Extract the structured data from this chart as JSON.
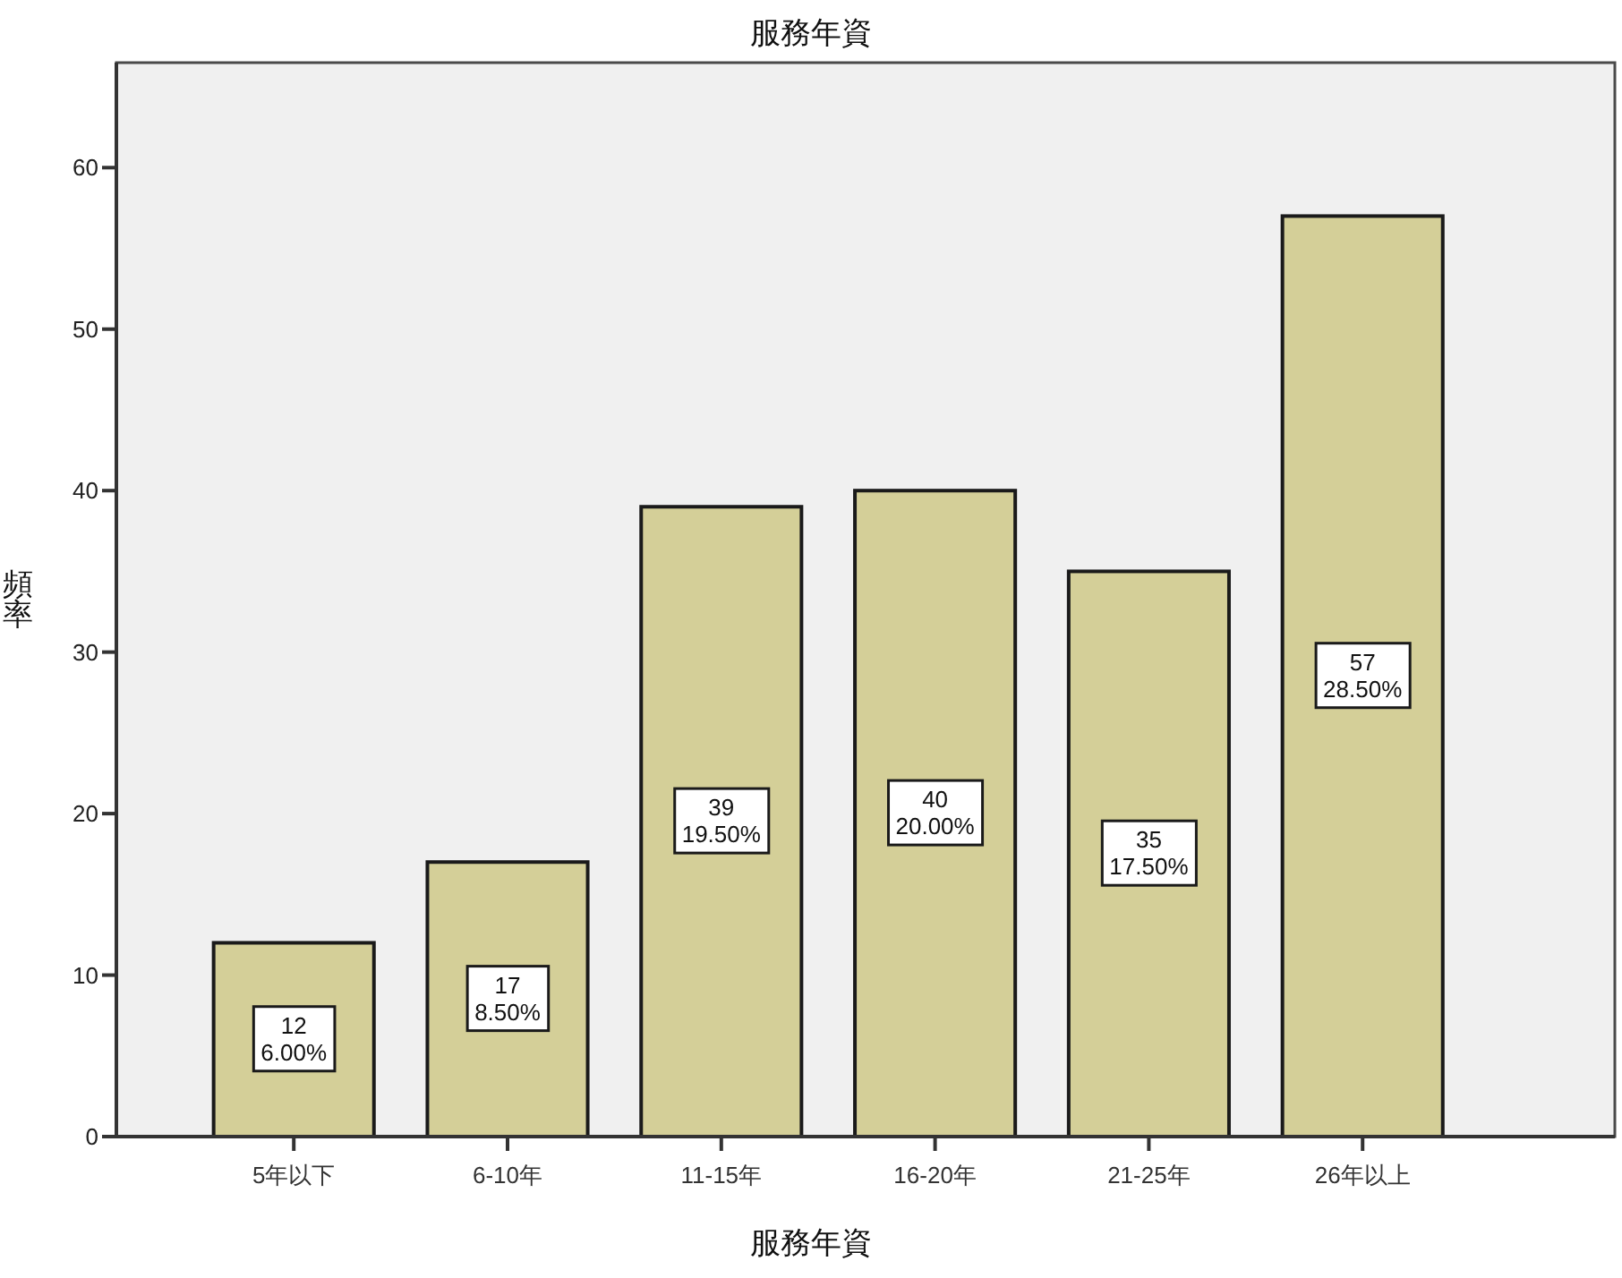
{
  "chart_data": {
    "type": "bar",
    "title": "服務年資",
    "xlabel": "服務年資",
    "ylabel": "頻率",
    "categories": [
      "5年以下",
      "6-10年",
      "11-15年",
      "16-20年",
      "21-25年",
      "26年以上"
    ],
    "values": [
      12,
      17,
      39,
      40,
      35,
      57
    ],
    "color": "#d4cf98",
    "value_labels": [
      "12\n6.00%",
      "17\n8.50%",
      "39\n19.50%",
      "40\n20.00%",
      "35\n17.50%",
      "57\n28.50%"
    ],
    "ylim": [
      0,
      66.5
    ],
    "yticks": [
      0,
      10,
      20,
      30,
      40,
      50,
      60
    ]
  }
}
